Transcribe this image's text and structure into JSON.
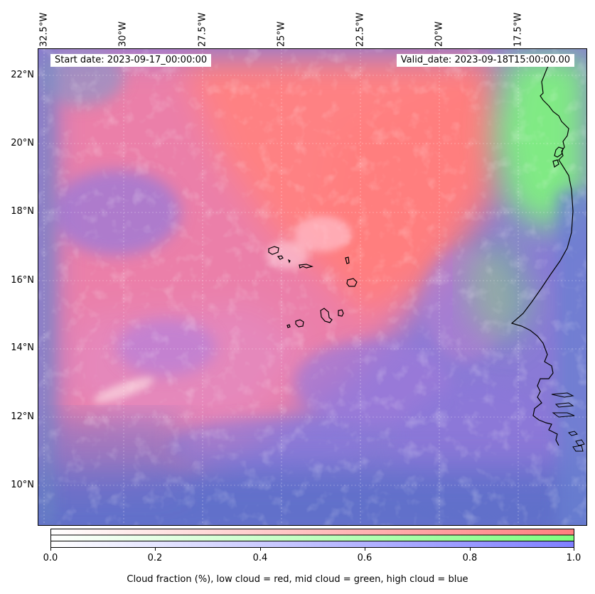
{
  "map": {
    "title_left": "Start date: 2023-09-17_00:00:00",
    "title_right": "Valid_date: 2023-09-18T15:00:00.00",
    "lon_labels": [
      "32.5°W",
      "30°W",
      "27.5°W",
      "25°W",
      "22.5°W",
      "20°W",
      "17.5°W"
    ],
    "lat_labels": [
      "22°N",
      "20°N",
      "18°N",
      "16°N",
      "14°N",
      "12°N",
      "10°N"
    ],
    "layers": [
      "low cloud",
      "mid cloud",
      "high cloud"
    ],
    "colors": {
      "low": "#ff7f7f",
      "mid": "#7fff7f",
      "high": "#7f7fff"
    }
  },
  "colorbar": {
    "ticks": [
      "0.0",
      "0.2",
      "0.4",
      "0.6",
      "0.8",
      "1.0"
    ],
    "label": "Cloud fraction (%), low cloud = red, mid cloud = green, high cloud = blue"
  }
}
